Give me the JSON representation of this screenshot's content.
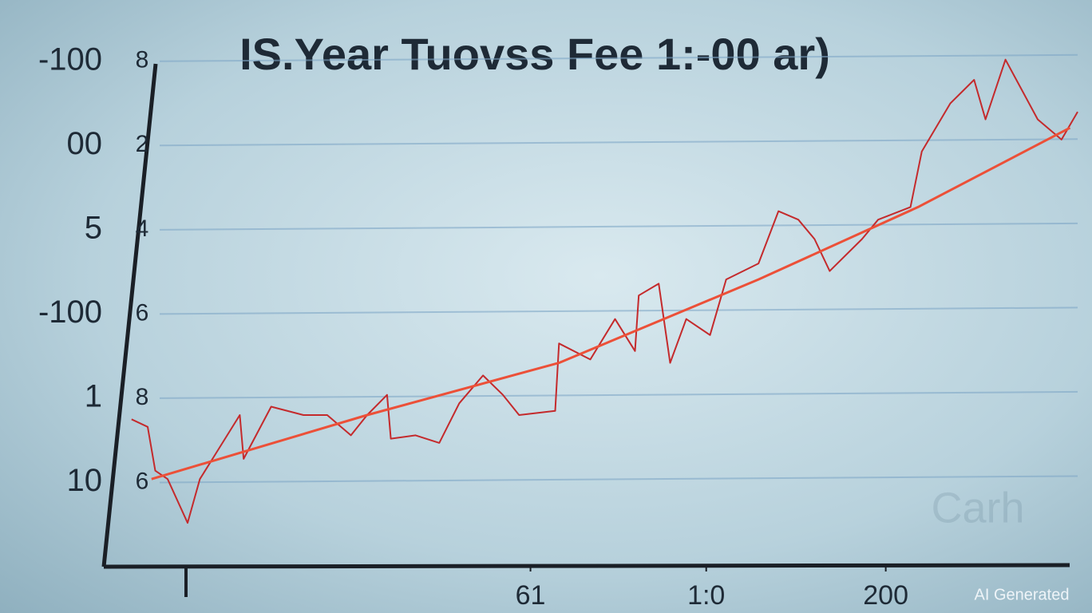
{
  "chart_data": {
    "type": "line",
    "title": "IS.Year Tuovss Fee 1:-00 ar)",
    "watermark": "Carh",
    "badge": "AI Generated",
    "xlim": [
      0,
      100
    ],
    "xticks": [
      {
        "value": 42.4,
        "label": "61"
      },
      {
        "value": 60.9,
        "label": "1:0"
      },
      {
        "value": 79.8,
        "label": "200"
      }
    ],
    "ylim": [
      0,
      6.5
    ],
    "yticks": [
      {
        "value": 1,
        "label": "10"
      },
      {
        "value": 2,
        "label": "1"
      },
      {
        "value": 3,
        "label": "-100"
      },
      {
        "value": 4,
        "label": "5"
      },
      {
        "value": 5,
        "label": "00"
      },
      {
        "value": 6,
        "label": "-100"
      }
    ],
    "y2lim": [
      0,
      6.5
    ],
    "y2ticks": [
      {
        "value": 1,
        "label": "6"
      },
      {
        "value": 2,
        "label": "8"
      },
      {
        "value": 3,
        "label": "6"
      },
      {
        "value": 4,
        "label": "4"
      },
      {
        "value": 5,
        "label": "2"
      },
      {
        "value": 6,
        "label": "8"
      }
    ],
    "grid": true,
    "series": [
      {
        "color": "#c42a2c",
        "x": [
          0.4,
          2.1,
          2.9,
          4.2,
          6.3,
          7.6,
          9.2,
          11.8,
          12.2,
          15.1,
          18.5,
          21.0,
          23.5,
          25.2,
          27.3,
          27.7,
          30.3,
          32.8,
          34.9,
          37.4,
          39.5,
          41.2,
          45.0,
          45.4,
          48.7,
          51.3,
          53.4,
          53.8,
          55.9,
          57.1,
          58.8,
          61.3,
          63.0,
          66.4,
          68.5,
          70.6,
          72.3,
          73.9,
          77.3,
          79.0,
          82.4,
          83.6,
          86.6,
          89.1,
          90.3,
          92.4,
          95.8,
          98.3,
          100
        ],
        "values": [
          1.75,
          1.66,
          1.14,
          1.04,
          0.52,
          1.04,
          1.33,
          1.8,
          1.28,
          1.9,
          1.8,
          1.8,
          1.56,
          1.8,
          2.04,
          1.52,
          1.56,
          1.47,
          1.94,
          2.27,
          2.04,
          1.8,
          1.85,
          2.65,
          2.46,
          2.94,
          2.56,
          3.22,
          3.36,
          2.42,
          2.94,
          2.75,
          3.41,
          3.6,
          4.22,
          4.12,
          3.89,
          3.51,
          3.89,
          4.12,
          4.27,
          4.93,
          5.5,
          5.78,
          5.31,
          6.02,
          5.31,
          5.07,
          5.4
        ]
      },
      {
        "color": "#ec5038",
        "x": [
          2.5,
          25.2,
          45.4,
          66.4,
          83.2,
          99.2
        ],
        "values": [
          1.04,
          1.8,
          2.42,
          3.41,
          4.27,
          5.21
        ]
      }
    ]
  }
}
